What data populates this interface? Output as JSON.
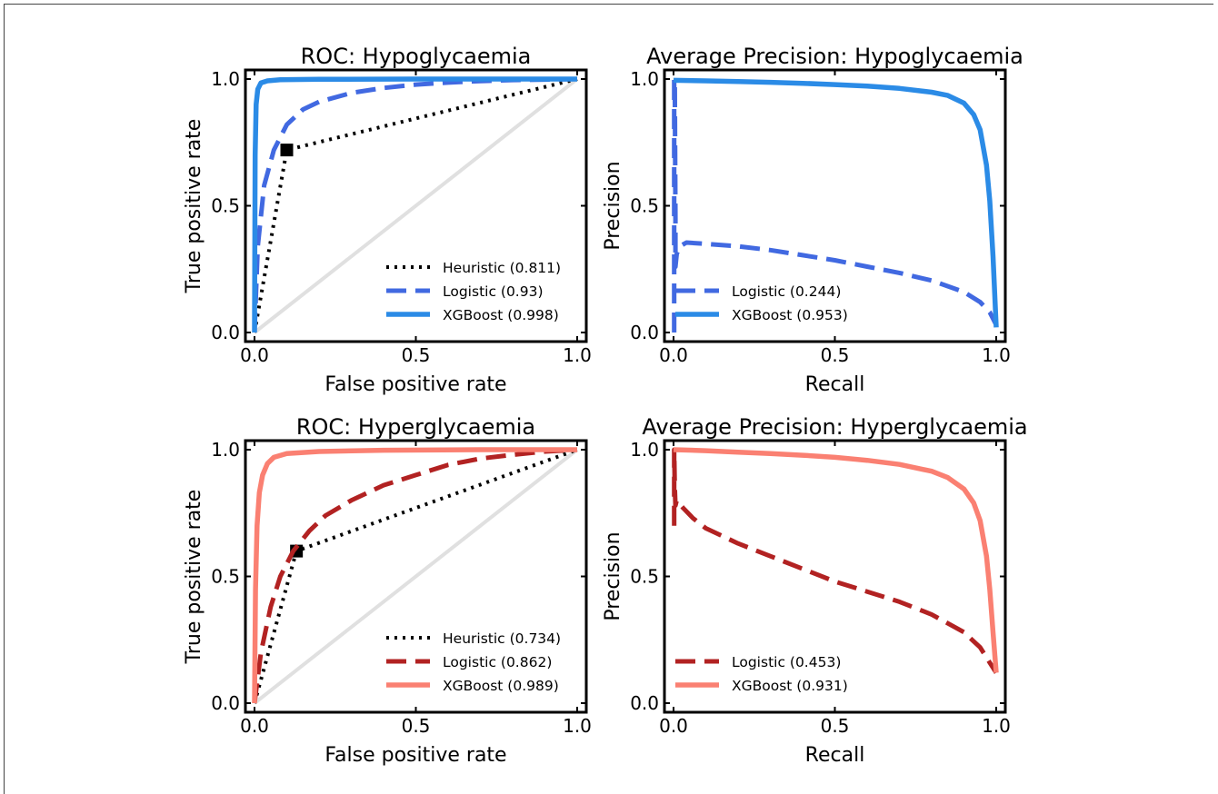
{
  "figure": {
    "colors": {
      "xgboost_hypo": "#2b8be6",
      "logistic_hypo": "#4169e1",
      "xgboost_hyper": "#fa8072",
      "logistic_hyper": "#b22222",
      "heuristic": "#000000",
      "diagonal": "#e0e0e0",
      "axes": "#000000"
    }
  },
  "chart_data": [
    {
      "type": "line",
      "title": "ROC: Hypoglycaemia",
      "xlabel": "False positive rate",
      "ylabel": "True positive rate",
      "xlim": [
        0,
        1
      ],
      "ylim": [
        0,
        1
      ],
      "xticks": [
        "0.0",
        "0.5",
        "1.0"
      ],
      "yticks": [
        "0.0",
        "0.5",
        "1.0"
      ],
      "legend_position": "lower-right",
      "diagonal": true,
      "series": [
        {
          "name": "Heuristic (0.811)",
          "style": "dotted",
          "color": "#000000",
          "x": [
            0,
            0.1,
            1
          ],
          "y": [
            0,
            0.72,
            1
          ],
          "marker": {
            "x": 0.1,
            "y": 0.72
          }
        },
        {
          "name": "Logistic (0.93)",
          "style": "dashed",
          "color": "#4169e1",
          "x": [
            0,
            0.01,
            0.03,
            0.06,
            0.1,
            0.15,
            0.2,
            0.3,
            0.4,
            0.5,
            0.6,
            0.7,
            0.8,
            0.9,
            1.0
          ],
          "y": [
            0,
            0.34,
            0.58,
            0.72,
            0.82,
            0.88,
            0.91,
            0.945,
            0.965,
            0.978,
            0.986,
            0.992,
            0.996,
            0.998,
            1.0
          ]
        },
        {
          "name": "XGBoost (0.998)",
          "style": "solid",
          "color": "#2b8be6",
          "x": [
            0,
            0.002,
            0.005,
            0.01,
            0.02,
            0.04,
            0.08,
            0.2,
            0.5,
            1.0
          ],
          "y": [
            0,
            0.7,
            0.9,
            0.96,
            0.985,
            0.993,
            0.997,
            0.999,
            1.0,
            1.0
          ]
        }
      ]
    },
    {
      "type": "line",
      "title": "Average Precision: Hypoglycaemia",
      "xlabel": "Recall",
      "ylabel": "Precision",
      "xlim": [
        0,
        1
      ],
      "ylim": [
        0,
        1
      ],
      "xticks": [
        "0.0",
        "0.5",
        "1.0"
      ],
      "yticks": [
        "0.0",
        "0.5",
        "1.0"
      ],
      "legend_position": "lower-center",
      "series": [
        {
          "name": "Logistic (0.244)",
          "style": "dashed",
          "color": "#4169e1",
          "x": [
            0.002,
            0.002,
            0.004,
            0.006,
            0.006,
            0.01,
            0.02,
            0.04,
            0.1,
            0.2,
            0.3,
            0.4,
            0.5,
            0.6,
            0.7,
            0.8,
            0.9,
            0.95,
            0.98,
            1.0
          ],
          "y": [
            0,
            1.0,
            0.98,
            0.45,
            0.26,
            0.31,
            0.34,
            0.355,
            0.35,
            0.34,
            0.325,
            0.305,
            0.285,
            0.26,
            0.235,
            0.205,
            0.16,
            0.12,
            0.08,
            0.03
          ]
        },
        {
          "name": "XGBoost (0.953)",
          "style": "solid",
          "color": "#2b8be6",
          "x": [
            0,
            0.1,
            0.2,
            0.3,
            0.4,
            0.5,
            0.6,
            0.7,
            0.8,
            0.85,
            0.9,
            0.93,
            0.95,
            0.97,
            0.98,
            0.99,
            1.0
          ],
          "y": [
            0.995,
            0.993,
            0.99,
            0.987,
            0.983,
            0.978,
            0.972,
            0.963,
            0.948,
            0.935,
            0.905,
            0.86,
            0.8,
            0.66,
            0.52,
            0.3,
            0.02
          ]
        }
      ]
    },
    {
      "type": "line",
      "title": "ROC: Hyperglycaemia",
      "xlabel": "False positive rate",
      "ylabel": "True positive rate",
      "xlim": [
        0,
        1
      ],
      "ylim": [
        0,
        1
      ],
      "xticks": [
        "0.0",
        "0.5",
        "1.0"
      ],
      "yticks": [
        "0.0",
        "0.5",
        "1.0"
      ],
      "legend_position": "lower-right",
      "diagonal": true,
      "series": [
        {
          "name": "Heuristic (0.734)",
          "style": "dotted",
          "color": "#000000",
          "x": [
            0,
            0.13,
            1
          ],
          "y": [
            0,
            0.6,
            1
          ],
          "marker": {
            "x": 0.13,
            "y": 0.6
          }
        },
        {
          "name": "Logistic (0.862)",
          "style": "dashed",
          "color": "#b22222",
          "x": [
            0,
            0.02,
            0.05,
            0.08,
            0.12,
            0.17,
            0.22,
            0.3,
            0.4,
            0.5,
            0.6,
            0.7,
            0.8,
            0.9,
            1.0
          ],
          "y": [
            0,
            0.2,
            0.38,
            0.5,
            0.6,
            0.68,
            0.74,
            0.8,
            0.86,
            0.9,
            0.94,
            0.965,
            0.98,
            0.993,
            1.0
          ]
        },
        {
          "name": "XGBoost (0.989)",
          "style": "solid",
          "color": "#fa8072",
          "x": [
            0,
            0.003,
            0.008,
            0.015,
            0.025,
            0.04,
            0.06,
            0.1,
            0.2,
            0.4,
            0.7,
            1.0
          ],
          "y": [
            0,
            0.45,
            0.7,
            0.83,
            0.9,
            0.945,
            0.97,
            0.985,
            0.993,
            0.998,
            1.0,
            1.0
          ]
        }
      ]
    },
    {
      "type": "line",
      "title": "Average Precision: Hyperglycaemia",
      "xlabel": "Recall",
      "ylabel": "Precision",
      "xlim": [
        0,
        1
      ],
      "ylim": [
        0,
        1
      ],
      "xticks": [
        "0.0",
        "0.5",
        "1.0"
      ],
      "yticks": [
        "0.0",
        "0.5",
        "1.0"
      ],
      "legend_position": "lower-left",
      "series": [
        {
          "name": "Logistic (0.453)",
          "style": "dashed",
          "color": "#b22222",
          "x": [
            0.002,
            0.002,
            0.004,
            0.006,
            0.01,
            0.03,
            0.06,
            0.1,
            0.2,
            0.3,
            0.4,
            0.5,
            0.6,
            0.7,
            0.8,
            0.9,
            0.95,
            0.98,
            1.0
          ],
          "y": [
            0.7,
            1.0,
            0.85,
            0.78,
            0.8,
            0.77,
            0.73,
            0.69,
            0.63,
            0.58,
            0.53,
            0.48,
            0.44,
            0.4,
            0.35,
            0.28,
            0.22,
            0.16,
            0.12
          ]
        },
        {
          "name": "XGBoost (0.931)",
          "style": "solid",
          "color": "#fa8072",
          "x": [
            0,
            0.1,
            0.2,
            0.3,
            0.4,
            0.5,
            0.6,
            0.7,
            0.8,
            0.85,
            0.9,
            0.93,
            0.95,
            0.97,
            0.98,
            0.99,
            1.0
          ],
          "y": [
            1.0,
            0.996,
            0.99,
            0.985,
            0.978,
            0.97,
            0.958,
            0.942,
            0.915,
            0.89,
            0.845,
            0.79,
            0.72,
            0.58,
            0.45,
            0.28,
            0.12
          ]
        }
      ]
    }
  ]
}
